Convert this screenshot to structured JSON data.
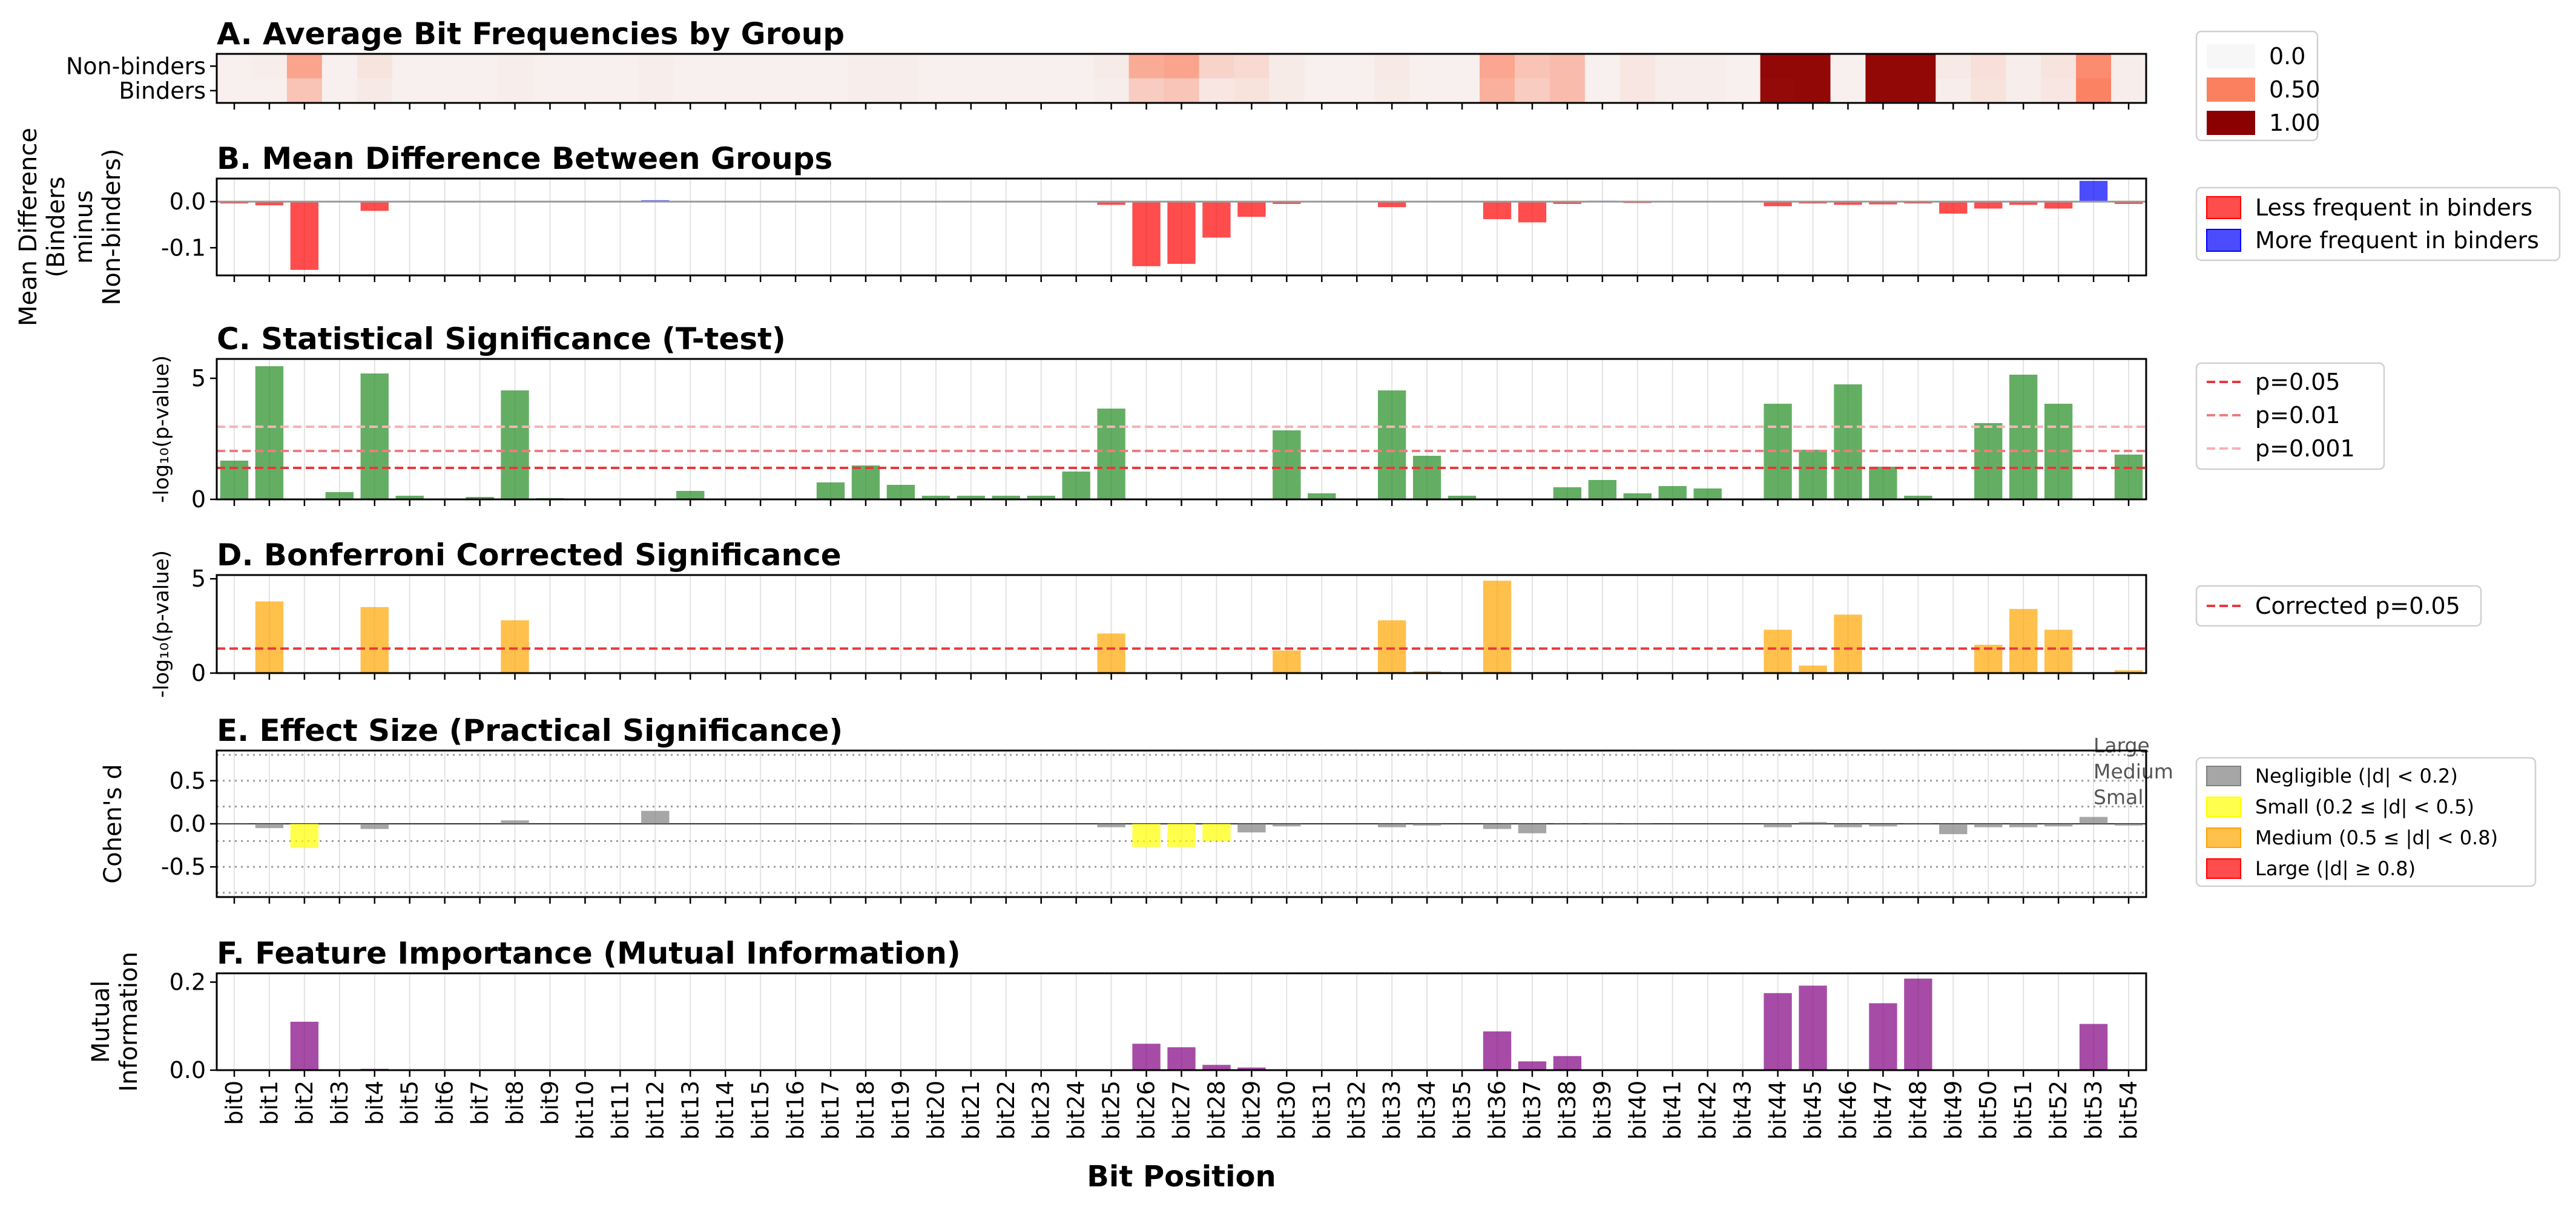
{
  "xlabel": "Bit Position",
  "bits": [
    "bit0",
    "bit1",
    "bit2",
    "bit3",
    "bit4",
    "bit5",
    "bit6",
    "bit7",
    "bit8",
    "bit9",
    "bit10",
    "bit11",
    "bit12",
    "bit13",
    "bit14",
    "bit15",
    "bit16",
    "bit17",
    "bit18",
    "bit19",
    "bit20",
    "bit21",
    "bit22",
    "bit23",
    "bit24",
    "bit25",
    "bit26",
    "bit27",
    "bit28",
    "bit29",
    "bit30",
    "bit31",
    "bit32",
    "bit33",
    "bit34",
    "bit35",
    "bit36",
    "bit37",
    "bit38",
    "bit39",
    "bit40",
    "bit41",
    "bit42",
    "bit43",
    "bit44",
    "bit45",
    "bit46",
    "bit47",
    "bit48",
    "bit49",
    "bit50",
    "bit51",
    "bit52",
    "bit53",
    "bit54"
  ],
  "colors": {
    "less": "#ff0000",
    "more": "#0000ff",
    "ttest": "#228b22",
    "bonferroni": "#ffa500",
    "mi": "#800080",
    "negligible": "#808080",
    "small": "#ffff00",
    "medium": "#ffa500",
    "large": "#ff0000"
  },
  "chart_data": [
    {
      "id": "A",
      "type": "heatmap",
      "title": "A. Average Bit Frequencies by Group",
      "rows": [
        "Non-binders",
        "Binders"
      ],
      "values": [
        [
          0.03,
          0.04,
          0.35,
          0.03,
          0.08,
          0.03,
          0.03,
          0.03,
          0.04,
          0.03,
          0.03,
          0.03,
          0.04,
          0.03,
          0.03,
          0.03,
          0.03,
          0.03,
          0.04,
          0.04,
          0.03,
          0.03,
          0.03,
          0.03,
          0.03,
          0.05,
          0.32,
          0.35,
          0.15,
          0.12,
          0.05,
          0.03,
          0.03,
          0.06,
          0.03,
          0.03,
          0.34,
          0.22,
          0.25,
          0.03,
          0.07,
          0.04,
          0.04,
          0.03,
          0.97,
          0.97,
          0.03,
          0.97,
          0.97,
          0.06,
          0.1,
          0.04,
          0.08,
          0.45,
          0.04
        ],
        [
          0.03,
          0.03,
          0.22,
          0.03,
          0.06,
          0.03,
          0.03,
          0.03,
          0.04,
          0.03,
          0.03,
          0.03,
          0.04,
          0.03,
          0.03,
          0.03,
          0.03,
          0.03,
          0.04,
          0.04,
          0.03,
          0.03,
          0.03,
          0.03,
          0.03,
          0.04,
          0.18,
          0.21,
          0.07,
          0.09,
          0.05,
          0.03,
          0.03,
          0.05,
          0.03,
          0.03,
          0.3,
          0.18,
          0.25,
          0.03,
          0.07,
          0.04,
          0.04,
          0.03,
          0.96,
          0.97,
          0.03,
          0.97,
          0.97,
          0.04,
          0.09,
          0.04,
          0.07,
          0.49,
          0.04
        ]
      ],
      "colorbar": {
        "ticks": [
          "0.0",
          "0.50",
          "1.00"
        ],
        "colors": [
          "#f7f7f7",
          "#fb8060",
          "#8b0000"
        ]
      }
    },
    {
      "id": "B",
      "type": "bar",
      "title": "B. Mean Difference Between Groups",
      "ylabel": "Mean Difference\n(Binders\nminus\nNon-binders)",
      "ylim": [
        -0.16,
        0.05
      ],
      "yticks": [
        "0.0",
        "-0.1"
      ],
      "yticks_values": [
        0.0,
        -0.1
      ],
      "values": [
        -0.004,
        -0.008,
        -0.148,
        0,
        -0.02,
        0,
        0,
        0,
        0,
        0,
        0,
        0,
        0.003,
        0,
        0,
        0,
        0,
        0,
        0,
        0,
        0,
        0,
        0,
        0,
        0,
        -0.007,
        -0.14,
        -0.135,
        -0.078,
        -0.033,
        -0.005,
        0,
        0,
        -0.012,
        0,
        0,
        -0.038,
        -0.045,
        -0.005,
        0.002,
        -0.003,
        0,
        0,
        0,
        -0.01,
        -0.004,
        -0.007,
        -0.006,
        -0.004,
        -0.026,
        -0.015,
        -0.007,
        -0.015,
        0.045,
        -0.005
      ],
      "legend": [
        "Less frequent in binders",
        "More frequent in binders"
      ]
    },
    {
      "id": "C",
      "type": "bar",
      "title": "C. Statistical Significance (T-test)",
      "ylabel": "-log₁₀(p-value)",
      "ylim": [
        0,
        5.8
      ],
      "yticks": [
        "0",
        "5"
      ],
      "yticks_values": [
        0,
        5
      ],
      "values": [
        1.6,
        5.5,
        0,
        0.3,
        5.2,
        0.15,
        0,
        0.1,
        4.5,
        0.05,
        0,
        0,
        0,
        0.35,
        0,
        0,
        0,
        0.7,
        1.4,
        0.6,
        0.15,
        0.15,
        0.15,
        0.15,
        1.15,
        3.75,
        0,
        0,
        0,
        0,
        2.85,
        0.25,
        0,
        4.5,
        1.8,
        0.15,
        0,
        0,
        0.5,
        0.8,
        0.25,
        0.55,
        0.45,
        0,
        3.95,
        2.05,
        4.75,
        1.35,
        0.15,
        0,
        3.15,
        5.15,
        3.95,
        0,
        1.85
      ],
      "thresholds": [
        {
          "label": "p=0.05",
          "value": 1.301,
          "color": "#e8383d"
        },
        {
          "label": "p=0.01",
          "value": 2.0,
          "color": "#f07b80"
        },
        {
          "label": "p=0.001",
          "value": 3.0,
          "color": "#f7b2b4"
        }
      ]
    },
    {
      "id": "D",
      "type": "bar",
      "title": "D. Bonferroni Corrected Significance",
      "ylabel": "-log₁₀(p-value)",
      "ylim": [
        0,
        5.2
      ],
      "yticks": [
        "0",
        "5"
      ],
      "yticks_values": [
        0,
        5
      ],
      "values": [
        0,
        3.8,
        0,
        0,
        3.5,
        0,
        0,
        0,
        2.8,
        0,
        0,
        0,
        0,
        0,
        0,
        0,
        0,
        0,
        0,
        0,
        0,
        0,
        0,
        0,
        0,
        2.1,
        0,
        0,
        0,
        0,
        1.2,
        0,
        0,
        2.8,
        0.1,
        0,
        4.9,
        0,
        0,
        0,
        0,
        0,
        0,
        0,
        2.3,
        0.4,
        3.1,
        0,
        0,
        0,
        1.5,
        3.4,
        2.3,
        0,
        0.15
      ],
      "thresholds": [
        {
          "label": "Corrected p=0.05",
          "value": 1.301,
          "color": "#e8383d"
        }
      ]
    },
    {
      "id": "E",
      "type": "bar",
      "title": "E. Effect Size (Practical Significance)",
      "ylabel": "Cohen's d",
      "ylim": [
        -0.85,
        0.85
      ],
      "yticks": [
        "0.5",
        "0.0",
        "-0.5"
      ],
      "yticks_values": [
        0.5,
        0.0,
        -0.5
      ],
      "values": [
        -0.01,
        -0.05,
        -0.28,
        0,
        -0.06,
        0,
        0,
        0,
        0.04,
        0,
        0,
        0,
        0.15,
        0,
        0,
        0,
        0,
        0,
        -0.01,
        0,
        0,
        0,
        0,
        0,
        0,
        -0.04,
        -0.27,
        -0.27,
        -0.2,
        -0.1,
        -0.03,
        0,
        0,
        -0.04,
        -0.02,
        0,
        -0.06,
        -0.11,
        -0.01,
        0.01,
        -0.01,
        0,
        0,
        0,
        -0.04,
        0.02,
        -0.04,
        -0.03,
        -0.01,
        -0.12,
        -0.04,
        -0.04,
        -0.03,
        0.08,
        -0.02
      ],
      "reference_lines": [
        {
          "label": "Large",
          "value": 0.8
        },
        {
          "label": "Medium",
          "value": 0.5
        },
        {
          "label": "Small",
          "value": 0.2
        }
      ],
      "legend": [
        "Negligible (|d| < 0.2)",
        "Small (0.2 ≤ |d| < 0.5)",
        "Medium (0.5 ≤ |d| < 0.8)",
        "Large (|d| ≥ 0.8)"
      ]
    },
    {
      "id": "F",
      "type": "bar",
      "title": "F. Feature Importance (Mutual Information)",
      "ylabel": "Mutual\nInformation",
      "ylim": [
        0,
        0.22
      ],
      "yticks": [
        "0.2",
        "0.0"
      ],
      "yticks_values": [
        0.2,
        0.0
      ],
      "values": [
        0,
        0,
        0.11,
        0,
        0.003,
        0,
        0,
        0,
        0,
        0,
        0,
        0,
        0,
        0,
        0,
        0,
        0,
        0,
        0,
        0,
        0,
        0,
        0,
        0,
        0,
        0,
        0.06,
        0.052,
        0.012,
        0.006,
        0,
        0,
        0,
        0,
        0,
        0,
        0.088,
        0.02,
        0.032,
        0,
        0.002,
        0,
        0,
        0,
        0.175,
        0.192,
        0,
        0.152,
        0.208,
        0,
        0.002,
        0,
        0,
        0.105,
        0
      ]
    }
  ]
}
